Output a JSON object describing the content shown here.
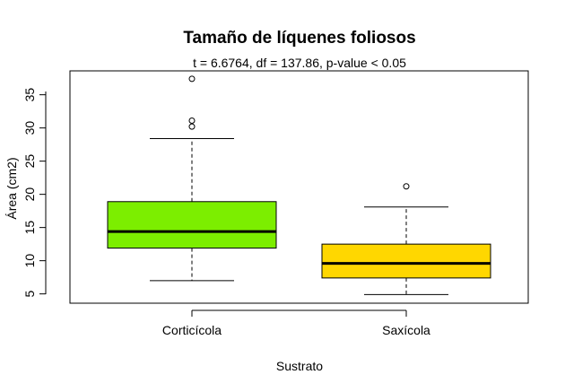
{
  "chart_data": {
    "type": "boxplot",
    "title": "Tamaño de líquenes foliosos",
    "subtitle": "t = 6.6764, df = 137.86, p-value < 0.05",
    "xlabel": "Sustrato",
    "ylabel": "Área (cm2)",
    "ylim": [
      3.6,
      38.6
    ],
    "y_ticks": [
      5,
      10,
      15,
      20,
      25,
      30,
      35
    ],
    "grid": false,
    "legend": "none",
    "categories": [
      "Corticícola",
      "Saxícola"
    ],
    "boxes": [
      {
        "category": "Corticícola",
        "color": "#7cee00",
        "whisker_low": 7.0,
        "q1": 11.9,
        "median": 14.4,
        "q3": 18.9,
        "whisker_high": 28.4,
        "outliers": [
          30.2,
          31.1,
          37.4
        ]
      },
      {
        "category": "Saxícola",
        "color": "#ffd700",
        "whisker_low": 4.9,
        "q1": 7.4,
        "median": 9.6,
        "q3": 12.5,
        "whisker_high": 18.1,
        "outliers": [
          21.2
        ]
      }
    ]
  }
}
